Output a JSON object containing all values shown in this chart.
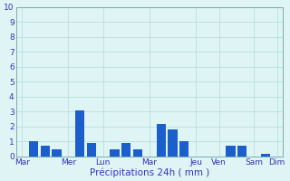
{
  "bars": [
    1.0,
    0.7,
    0.5,
    3.1,
    0.9,
    0.5,
    0.9,
    0.5,
    2.2,
    1.8,
    1.0,
    0.0,
    0.7,
    0.7,
    0.2
  ],
  "bar_positions": [
    1,
    2,
    3,
    5,
    6,
    8,
    9,
    10,
    12,
    13,
    14,
    16,
    18,
    19,
    21
  ],
  "day_labels": [
    "Mar",
    "Mer",
    "Lun",
    "Mar",
    "Jeu",
    "Ven",
    "Sam",
    "Dim"
  ],
  "day_tick_positions": [
    0,
    4,
    7,
    11,
    15,
    17,
    20,
    22
  ],
  "xlabel": "Précipitations 24h ( mm )",
  "ylim": [
    0,
    10
  ],
  "yticks": [
    0,
    1,
    2,
    3,
    4,
    5,
    6,
    7,
    8,
    9,
    10
  ],
  "bar_color": "#1c5fcc",
  "bg_color": "#dff5f5",
  "grid_color": "#b8dede",
  "tick_color": "#3333bb",
  "label_color": "#3333bb",
  "spine_color": "#7aabab",
  "xlim": [
    -0.5,
    22.5
  ]
}
